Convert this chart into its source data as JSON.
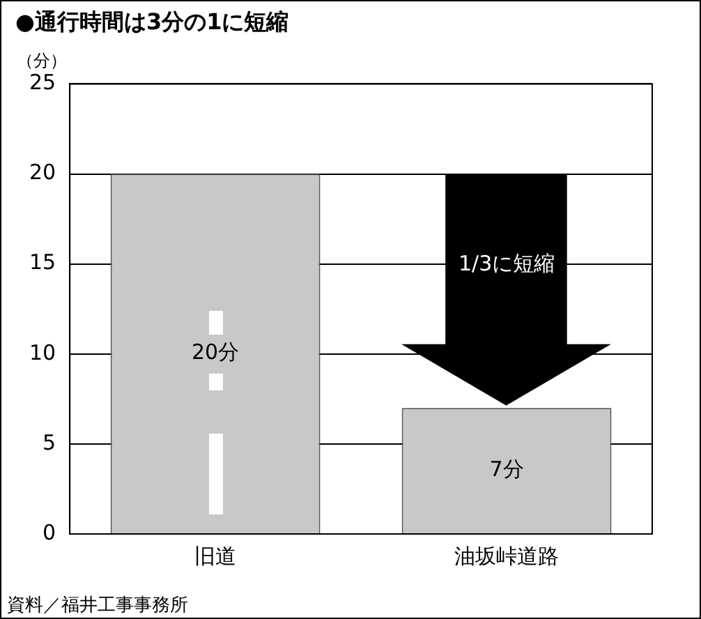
{
  "chart_data": {
    "type": "bar",
    "title": "●通行時間は3分の1に短縮",
    "ylabel": "（分）",
    "categories": [
      "旧道",
      "油坂峠道路"
    ],
    "values": [
      20,
      7
    ],
    "color": "#c8c8c8",
    "value_labels": [
      "20分",
      "7分"
    ],
    "ylim": [
      0,
      25
    ],
    "yticks": [
      0,
      5,
      10,
      15,
      20,
      25
    ],
    "grid": "y",
    "annotations": [
      "1/3に短縮",
      "資料／福井工事事務所"
    ]
  }
}
